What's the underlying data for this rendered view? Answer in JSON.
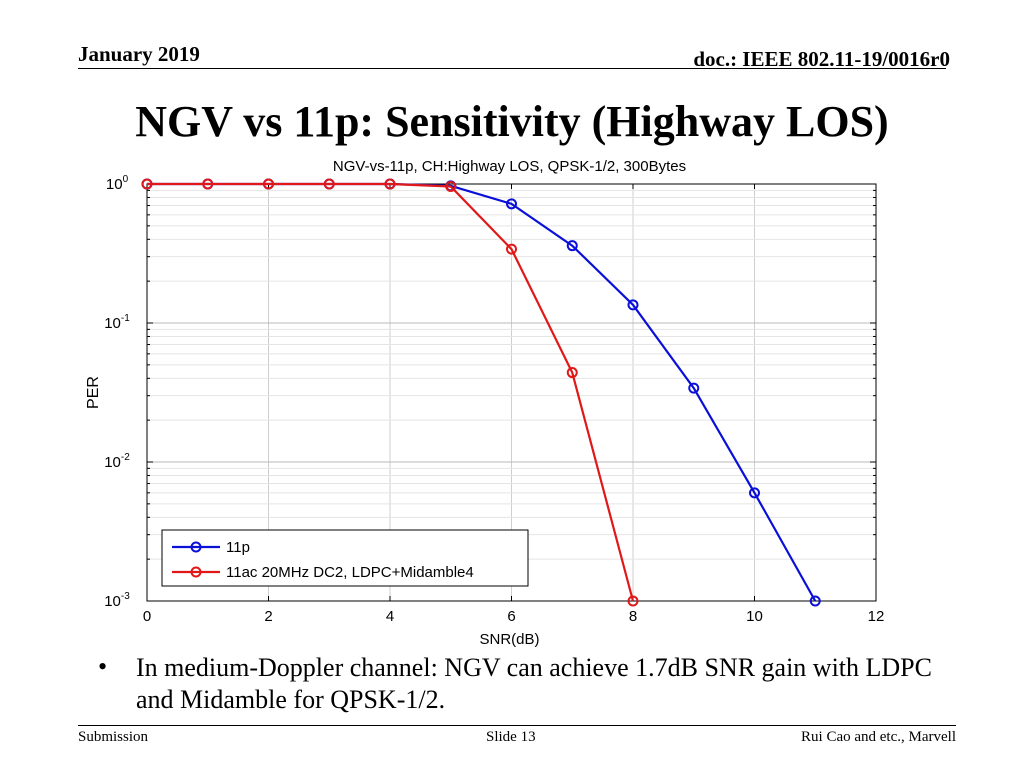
{
  "header": {
    "date": "January 2019",
    "doc": "doc.: IEEE 802.11-19/0016r0"
  },
  "slide_title": "NGV vs 11p: Sensitivity (Highway LOS)",
  "bullet": {
    "marker": "•",
    "text": "In medium-Doppler channel: NGV can achieve 1.7dB SNR gain with LDPC and Midamble for QPSK-1/2."
  },
  "footer": {
    "left": "Submission",
    "center": "Slide 13",
    "right": "Rui Cao and etc., Marvell"
  },
  "chart_data": {
    "type": "line",
    "title": "NGV-vs-11p, CH:Highway LOS, QPSK-1/2, 300Bytes",
    "xlabel": "SNR(dB)",
    "ylabel": "PER",
    "xlim": [
      0,
      12
    ],
    "ylim": [
      0.001,
      1
    ],
    "yscale": "log",
    "grid": true,
    "legend_position": "bottom-left",
    "x_ticks": [
      0,
      2,
      4,
      6,
      8,
      10,
      12
    ],
    "y_tick_labels": [
      {
        "exp": 0,
        "base": "10",
        "power": "0"
      },
      {
        "exp": -1,
        "base": "10",
        "power": "-1"
      },
      {
        "exp": -2,
        "base": "10",
        "power": "-2"
      },
      {
        "exp": -3,
        "base": "10",
        "power": "-3"
      }
    ],
    "series": [
      {
        "name": "11p",
        "color": "#0a10d8",
        "x": [
          0,
          1,
          2,
          3,
          4,
          5,
          6,
          7,
          8,
          9,
          10,
          11
        ],
        "y": [
          1.0,
          1.0,
          1.0,
          1.0,
          1.0,
          0.97,
          0.72,
          0.36,
          0.135,
          0.034,
          0.006,
          0.001
        ]
      },
      {
        "name": "11ac 20MHz DC2, LDPC+Midamble4",
        "color": "#e01818",
        "x": [
          0,
          1,
          2,
          3,
          4,
          5,
          6,
          7,
          8
        ],
        "y": [
          1.0,
          1.0,
          1.0,
          1.0,
          1.0,
          0.96,
          0.34,
          0.044,
          0.001
        ]
      }
    ]
  }
}
